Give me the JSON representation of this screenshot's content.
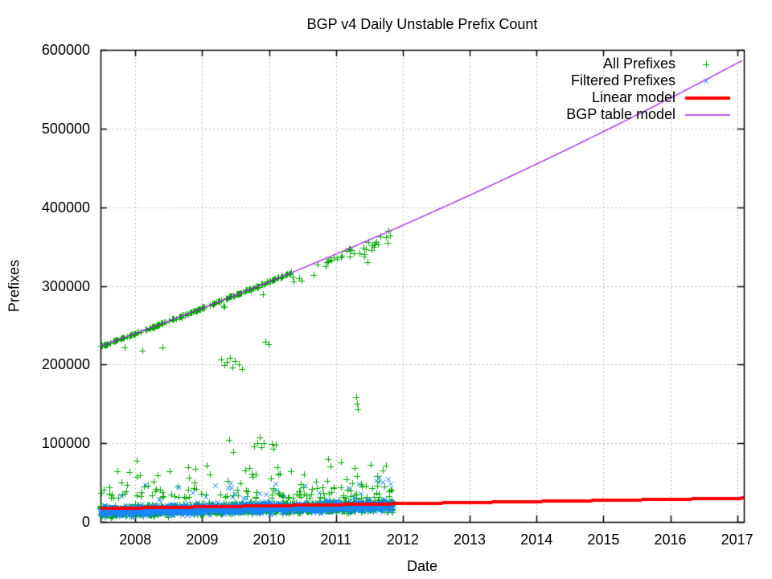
{
  "chart_data": {
    "type": "scatter",
    "title": "BGP v4 Daily Unstable Prefix Count",
    "xlabel": "Date",
    "ylabel": "Prefixes",
    "xlim": [
      2007.48,
      2017.1
    ],
    "ylim": [
      0,
      600000
    ],
    "x_ticks": [
      2008,
      2009,
      2010,
      2011,
      2012,
      2013,
      2014,
      2015,
      2016,
      2017
    ],
    "y_ticks": [
      0,
      100000,
      200000,
      300000,
      400000,
      500000,
      600000
    ],
    "grid": true,
    "grid_color": "#a8a8a8",
    "legend_position": "top-right",
    "series": [
      {
        "name": "All Prefixes",
        "kind": "points",
        "marker": "plus",
        "color": "#00a800"
      },
      {
        "name": "Filtered Prefixes",
        "kind": "points",
        "marker": "cross",
        "color": "#1787ff"
      },
      {
        "name": "Linear model",
        "kind": "line",
        "color": "#ff0000",
        "width": 4,
        "linear": {
          "t0": 2007.48,
          "v0": 17000,
          "t1": 2017.1,
          "v1": 30200
        }
      },
      {
        "name": "BGP table model",
        "kind": "line",
        "color": "#a020e0",
        "width": 1.3,
        "quadratic": {
          "t0": 2007.5,
          "c0": 224000,
          "c1": 30590,
          "c2": 758,
          "t_start": 2007.48,
          "t_end": 2017.1
        }
      }
    ],
    "all_prefixes": {
      "upper_track": {
        "comment": "daily points riding the BGP table model curve",
        "t_start": 2007.48,
        "t_dense_end": 2010.33,
        "t_end": 2011.86,
        "dense_step": 0.01,
        "dense_keep": 0.6,
        "dense_jitter": 1800,
        "sparse_step": 0.02,
        "sparse_keep": 0.38,
        "sparse_drop_min": 1500,
        "sparse_drop_max": 17000,
        "extra_points": [
          [
            2008.1,
            217500
          ],
          [
            2008.4,
            222000
          ],
          [
            2010.88,
            331000
          ],
          [
            2010.91,
            333000
          ],
          [
            2010.93,
            332500
          ],
          [
            2011.16,
            344000
          ],
          [
            2011.19,
            346000
          ],
          [
            2011.21,
            347000
          ],
          [
            2011.23,
            345000
          ],
          [
            2011.42,
            337000
          ],
          [
            2011.47,
            330000
          ],
          [
            2011.55,
            352000
          ],
          [
            2011.58,
            354000
          ],
          [
            2011.6,
            355500
          ],
          [
            2011.63,
            353000
          ],
          [
            2011.78,
            370000
          ]
        ]
      },
      "outliers": [
        [
          2009.28,
          206000
        ],
        [
          2009.33,
          199500
        ],
        [
          2009.37,
          203500
        ],
        [
          2009.42,
          209000
        ],
        [
          2009.45,
          196500
        ],
        [
          2009.49,
          204000
        ],
        [
          2009.55,
          200500
        ],
        [
          2009.6,
          194000
        ],
        [
          2009.95,
          228500
        ],
        [
          2009.99,
          225500
        ],
        [
          2009.4,
          104500
        ],
        [
          2009.78,
          96500
        ],
        [
          2009.82,
          100500
        ],
        [
          2009.86,
          107500
        ],
        [
          2009.89,
          95500
        ],
        [
          2009.92,
          100000
        ],
        [
          2010.04,
          99000
        ],
        [
          2010.07,
          93500
        ],
        [
          2010.1,
          98000
        ],
        [
          2011.3,
          158000
        ],
        [
          2011.315,
          150500
        ],
        [
          2011.325,
          143500
        ],
        [
          2008.02,
          78000
        ],
        [
          2008.52,
          64500
        ],
        [
          2008.9,
          67000
        ],
        [
          2009.07,
          72000
        ],
        [
          2009.46,
          88500
        ],
        [
          2010.33,
          64000
        ],
        [
          2010.52,
          60000
        ],
        [
          2010.88,
          80000
        ],
        [
          2010.92,
          71000
        ],
        [
          2011.08,
          75500
        ],
        [
          2011.28,
          68000
        ],
        [
          2011.52,
          73000
        ],
        [
          2011.62,
          58000
        ],
        [
          2011.7,
          65000
        ],
        [
          2011.75,
          71500
        ]
      ],
      "band": {
        "t_start": 2007.48,
        "t_end": 2011.86,
        "step_days": 1,
        "center0": 13500,
        "slope": 1600,
        "spread": 9500,
        "min": 1500,
        "spike_p": 0.08,
        "spike_base": 30000,
        "spike_span": 45000
      }
    },
    "filtered_prefixes": {
      "band": {
        "t_start": 2007.48,
        "t_end": 2011.86,
        "step_days": 1,
        "center0": 13500,
        "slope": 1600,
        "spread": 9500,
        "min": 2500,
        "spike_p": 0.015,
        "spike_base": 8000,
        "spike_span": 20000
      },
      "outliers": [
        [
          2008.15,
          47500
        ],
        [
          2008.65,
          44000
        ],
        [
          2009.2,
          46000
        ],
        [
          2010.1,
          48500
        ],
        [
          2010.55,
          45500
        ],
        [
          2011.6,
          52000
        ],
        [
          2011.65,
          56500
        ],
        [
          2011.7,
          50000
        ],
        [
          2011.78,
          54000
        ],
        [
          2011.82,
          48000
        ]
      ]
    },
    "axis_color": "#000000",
    "background_color": "#ffffff"
  },
  "legend": {
    "entries": [
      {
        "label": "All Prefixes"
      },
      {
        "label": "Filtered Prefixes"
      },
      {
        "label": "Linear model"
      },
      {
        "label": "BGP table model"
      }
    ]
  }
}
